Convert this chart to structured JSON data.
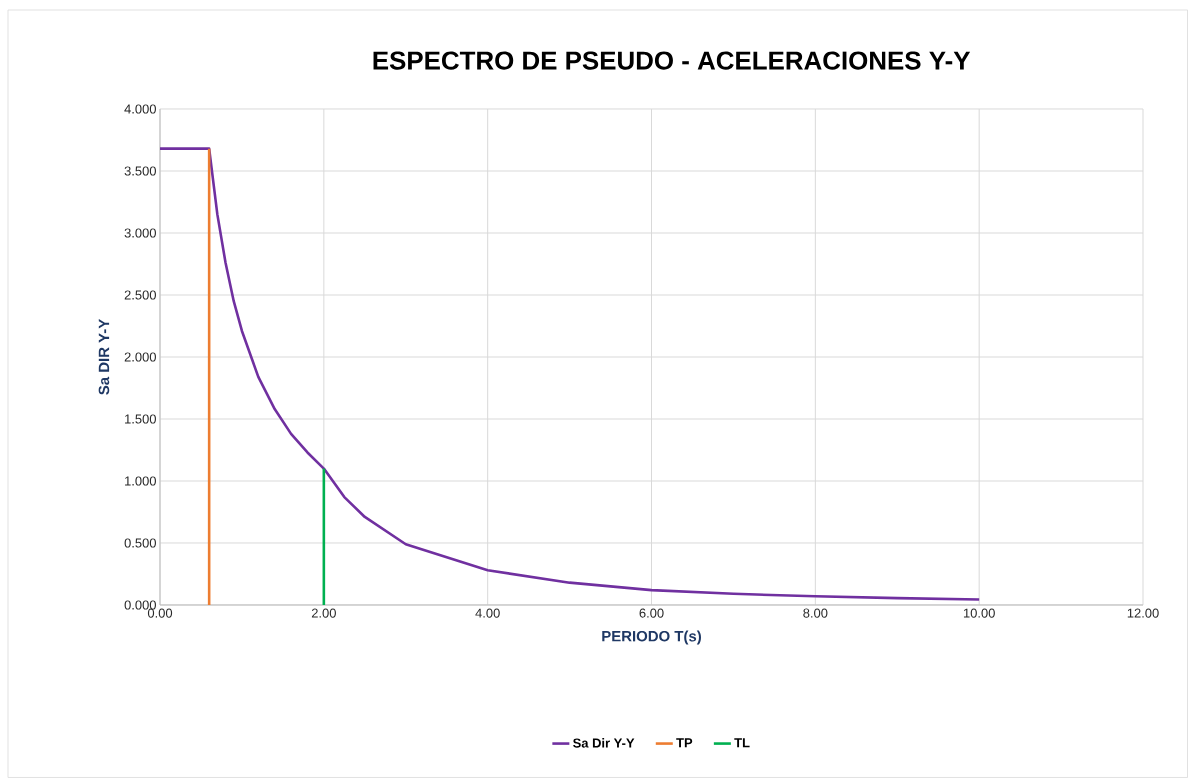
{
  "chart_data": {
    "type": "line",
    "title": "ESPECTRO DE PSEUDO - ACELERACIONES Y-Y",
    "xlabel": "PERIODO T(s)",
    "ylabel": "Sa DIR Y-Y",
    "xlim": [
      0,
      12
    ],
    "ylim": [
      0,
      4
    ],
    "xticks": [
      {
        "value": 0,
        "label": "0.00"
      },
      {
        "value": 2,
        "label": "2.00"
      },
      {
        "value": 4,
        "label": "4.00"
      },
      {
        "value": 6,
        "label": "6.00"
      },
      {
        "value": 8,
        "label": "8.00"
      },
      {
        "value": 10,
        "label": "10.00"
      },
      {
        "value": 12,
        "label": "12.00"
      }
    ],
    "yticks": [
      {
        "value": 0,
        "label": "0.000"
      },
      {
        "value": 0.5,
        "label": "0.500"
      },
      {
        "value": 1,
        "label": "1.000"
      },
      {
        "value": 1.5,
        "label": "1.500"
      },
      {
        "value": 2,
        "label": "2.000"
      },
      {
        "value": 2.5,
        "label": "2.500"
      },
      {
        "value": 3,
        "label": "3.000"
      },
      {
        "value": 3.5,
        "label": "3.500"
      },
      {
        "value": 4,
        "label": "4.000"
      }
    ],
    "grid": true,
    "legend": "bottom",
    "marker": "none",
    "line_style": "solid",
    "series": [
      {
        "name": "Sa Dir Y-Y",
        "color": "#7030a0",
        "x": [
          0,
          0.6,
          0.7,
          0.8,
          0.9,
          1.0,
          1.2,
          1.4,
          1.6,
          1.8,
          2.0,
          2.25,
          2.5,
          3.0,
          4.0,
          5.0,
          6.0,
          7.0,
          8.0,
          9.0,
          10.0
        ],
        "values": [
          3.68,
          3.68,
          3.15,
          2.76,
          2.45,
          2.21,
          1.84,
          1.58,
          1.38,
          1.23,
          1.1,
          0.87,
          0.71,
          0.49,
          0.28,
          0.18,
          0.12,
          0.09,
          0.07,
          0.055,
          0.044
        ]
      },
      {
        "name": "TP",
        "color": "#ed7d31",
        "x": [
          0.6,
          0.6
        ],
        "values": [
          0,
          3.68
        ]
      },
      {
        "name": "TL",
        "color": "#00b050",
        "x": [
          2.0,
          2.0
        ],
        "values": [
          0,
          1.1
        ]
      }
    ]
  }
}
